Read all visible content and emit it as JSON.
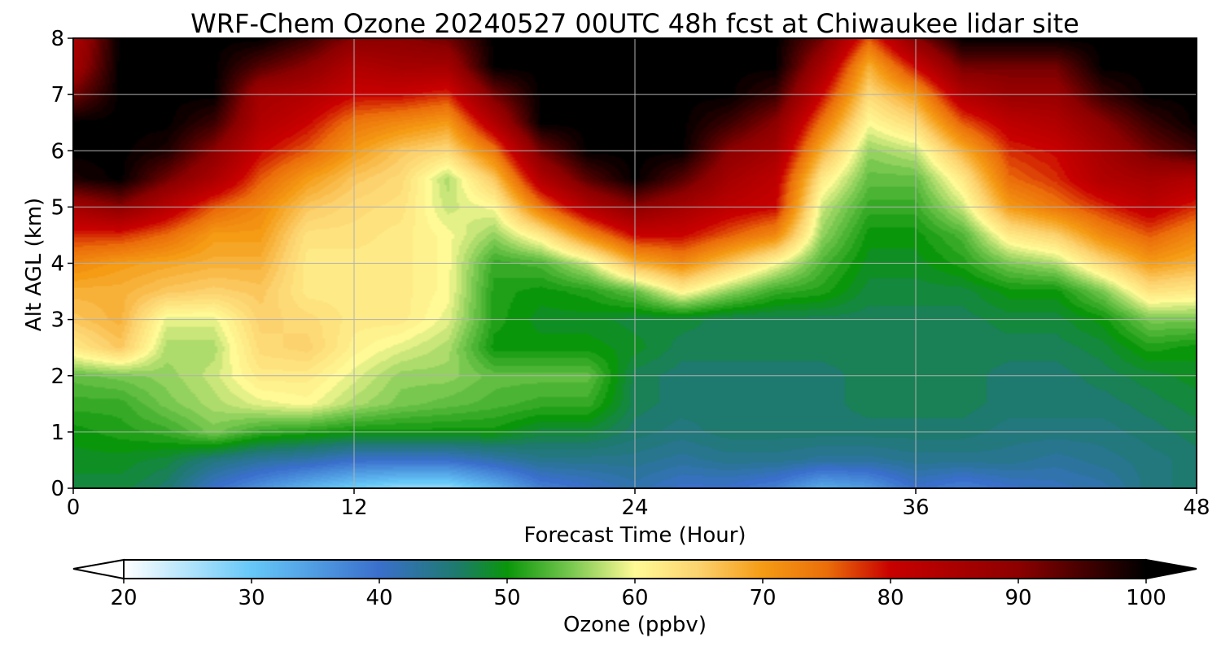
{
  "chart_data": {
    "type": "heatmap",
    "title": "WRF-Chem Ozone  20240527 00UTC 48h fcst at Chiwaukee lidar site",
    "xlabel": "Forecast Time (Hour)",
    "ylabel": "Alt AGL (km)",
    "xlim": [
      0,
      48
    ],
    "ylim": [
      0,
      8
    ],
    "x_ticks": [
      "0",
      "12",
      "24",
      "36",
      "48"
    ],
    "y_ticks": [
      "0",
      "1",
      "2",
      "3",
      "4",
      "5",
      "6",
      "7",
      "8"
    ],
    "grid": true,
    "x_hours": [
      0,
      2,
      4,
      6,
      8,
      10,
      12,
      14,
      16,
      18,
      20,
      22,
      24,
      26,
      28,
      30,
      32,
      34,
      36,
      38,
      40,
      42,
      44,
      46,
      48
    ],
    "altitudes_km": [
      0,
      0.5,
      1,
      1.5,
      2,
      2.5,
      3,
      3.5,
      4,
      4.5,
      5,
      5.5,
      6,
      6.5,
      7,
      7.5,
      8
    ],
    "ozone_ppbv": [
      [
        48,
        48,
        46,
        40,
        36,
        32,
        29,
        27,
        27,
        32,
        38,
        40,
        42,
        40,
        40,
        38,
        33,
        35,
        40,
        38,
        40,
        41,
        42,
        45,
        46
      ],
      [
        49,
        49,
        48,
        45,
        43,
        42,
        40,
        40,
        40,
        42,
        44,
        44,
        44,
        43,
        44,
        44,
        43,
        43,
        44,
        44,
        44,
        43,
        44,
        45,
        46
      ],
      [
        50,
        51,
        52,
        55,
        52,
        51,
        50,
        50,
        50,
        50,
        48,
        48,
        46,
        45,
        46,
        46,
        46,
        46,
        46,
        46,
        45,
        45,
        45,
        46,
        47
      ],
      [
        52,
        52,
        55,
        57,
        59,
        60,
        57,
        55,
        54,
        53,
        52,
        52,
        47,
        46,
        46,
        46,
        46,
        47,
        47,
        47,
        46,
        46,
        46,
        47,
        48
      ],
      [
        54,
        55,
        56,
        58,
        62,
        62,
        59,
        56,
        56,
        54,
        54,
        54,
        47,
        46,
        46,
        46,
        46,
        47,
        47,
        47,
        46,
        46,
        47,
        48,
        49
      ],
      [
        62,
        66,
        57,
        57,
        64,
        65,
        61,
        59,
        57,
        50,
        50,
        50,
        49,
        47,
        47,
        47,
        47,
        47,
        47,
        47,
        47,
        47,
        48,
        51,
        50
      ],
      [
        66,
        68,
        59,
        59,
        65,
        64,
        62,
        62,
        59,
        51,
        49,
        49,
        48,
        48,
        47,
        47,
        47,
        47,
        47,
        47,
        48,
        48,
        50,
        55,
        55
      ],
      [
        68,
        68,
        66,
        65,
        66,
        62,
        62,
        62,
        60,
        51,
        50,
        51,
        54,
        61,
        56,
        52,
        51,
        48,
        48,
        48,
        50,
        50,
        55,
        63,
        62
      ],
      [
        72,
        70,
        69,
        68,
        68,
        62,
        62,
        62,
        60,
        52,
        53,
        58,
        68,
        72,
        66,
        60,
        53,
        49,
        49,
        51,
        55,
        57,
        64,
        70,
        68
      ],
      [
        78,
        78,
        75,
        70,
        70,
        63,
        63,
        62,
        60,
        56,
        62,
        72,
        80,
        80,
        76,
        72,
        56,
        50,
        50,
        53,
        62,
        65,
        72,
        76,
        72
      ],
      [
        86,
        90,
        83,
        76,
        72,
        66,
        64,
        63,
        58,
        60,
        74,
        84,
        90,
        86,
        82,
        80,
        58,
        52,
        52,
        58,
        70,
        74,
        78,
        82,
        78
      ],
      [
        98,
        100,
        92,
        85,
        76,
        70,
        66,
        64,
        57,
        66,
        84,
        94,
        100,
        94,
        86,
        82,
        62,
        54,
        54,
        62,
        75,
        78,
        84,
        86,
        84
      ],
      [
        100,
        100,
        98,
        90,
        80,
        76,
        70,
        66,
        64,
        74,
        92,
        100,
        100,
        100,
        90,
        86,
        68,
        56,
        58,
        68,
        78,
        80,
        86,
        92,
        96
      ],
      [
        100,
        100,
        100,
        96,
        84,
        80,
        74,
        72,
        70,
        84,
        100,
        100,
        100,
        100,
        96,
        90,
        74,
        60,
        64,
        76,
        82,
        84,
        90,
        96,
        100
      ],
      [
        92,
        100,
        100,
        100,
        86,
        84,
        80,
        80,
        78,
        92,
        100,
        100,
        100,
        100,
        100,
        96,
        80,
        64,
        70,
        84,
        88,
        88,
        96,
        100,
        100
      ],
      [
        86,
        100,
        100,
        100,
        94,
        90,
        84,
        86,
        86,
        100,
        100,
        100,
        100,
        100,
        100,
        100,
        86,
        68,
        80,
        92,
        92,
        92,
        100,
        100,
        100
      ],
      [
        84,
        100,
        100,
        100,
        100,
        96,
        90,
        90,
        92,
        100,
        100,
        100,
        100,
        100,
        100,
        100,
        92,
        76,
        90,
        100,
        100,
        100,
        100,
        100,
        100
      ]
    ],
    "colorbar": {
      "label": "Ozone  (ppbv)",
      "min": 20,
      "max": 100,
      "ticks": [
        "20",
        "30",
        "40",
        "50",
        "60",
        "70",
        "80",
        "90",
        "100"
      ],
      "extend": "both",
      "anchors": [
        {
          "v": 20,
          "c": "#ffffff"
        },
        {
          "v": 30,
          "c": "#66c8f8"
        },
        {
          "v": 40,
          "c": "#3a6fcc"
        },
        {
          "v": 46,
          "c": "#1e7a6e"
        },
        {
          "v": 50,
          "c": "#0a960a"
        },
        {
          "v": 55,
          "c": "#78c850"
        },
        {
          "v": 60,
          "c": "#fffa96"
        },
        {
          "v": 65,
          "c": "#fcd26e"
        },
        {
          "v": 70,
          "c": "#f59b14"
        },
        {
          "v": 75,
          "c": "#eb6e0a"
        },
        {
          "v": 80,
          "c": "#c80000"
        },
        {
          "v": 90,
          "c": "#8c0000"
        },
        {
          "v": 100,
          "c": "#000000"
        }
      ]
    }
  }
}
